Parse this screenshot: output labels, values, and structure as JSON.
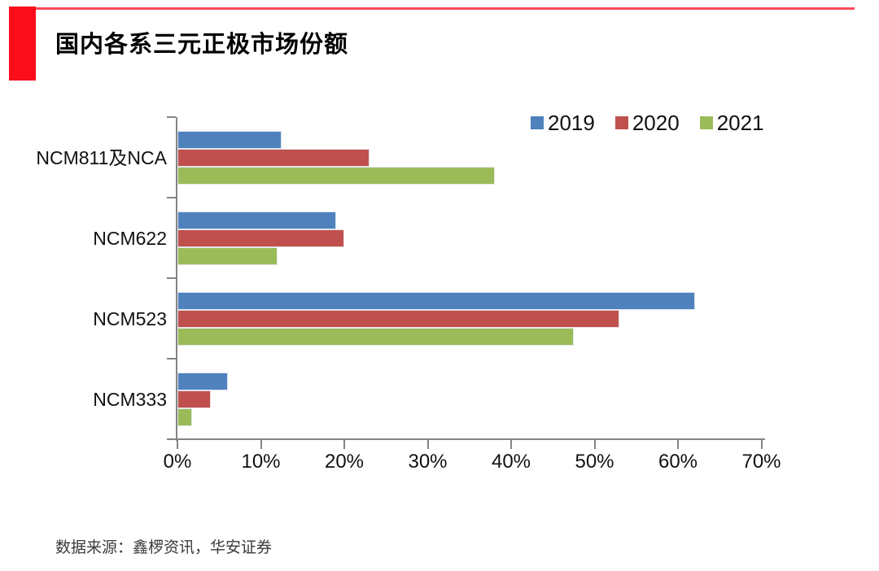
{
  "header": {
    "title": "国内各系三元正极市场份额",
    "accent_block_color": "#FB0D1B",
    "accent_line_color": "#FB4A59"
  },
  "footer": {
    "source": "数据来源：鑫椤资讯，华安证券"
  },
  "chart_data": {
    "type": "bar",
    "orientation": "horizontal",
    "title": "国内各系三元正极市场份额",
    "categories": [
      "NCM811及NCA",
      "NCM622",
      "NCM523",
      "NCM333"
    ],
    "series": [
      {
        "name": "2019",
        "color": "#4F81BD",
        "values": [
          12.5,
          19,
          62,
          6
        ]
      },
      {
        "name": "2020",
        "color": "#C0504D",
        "values": [
          23,
          20,
          53,
          4
        ]
      },
      {
        "name": "2021",
        "color": "#9BBB59",
        "values": [
          38,
          12,
          47.5,
          1.8
        ]
      }
    ],
    "xlabel": "",
    "ylabel": "",
    "xlim": [
      0,
      70
    ],
    "x_ticks": [
      "0%",
      "10%",
      "20%",
      "30%",
      "40%",
      "50%",
      "60%",
      "70%"
    ],
    "tick_step_percent": 10,
    "legend_position": "top-right",
    "grid": false,
    "axis_color": "#848484"
  }
}
